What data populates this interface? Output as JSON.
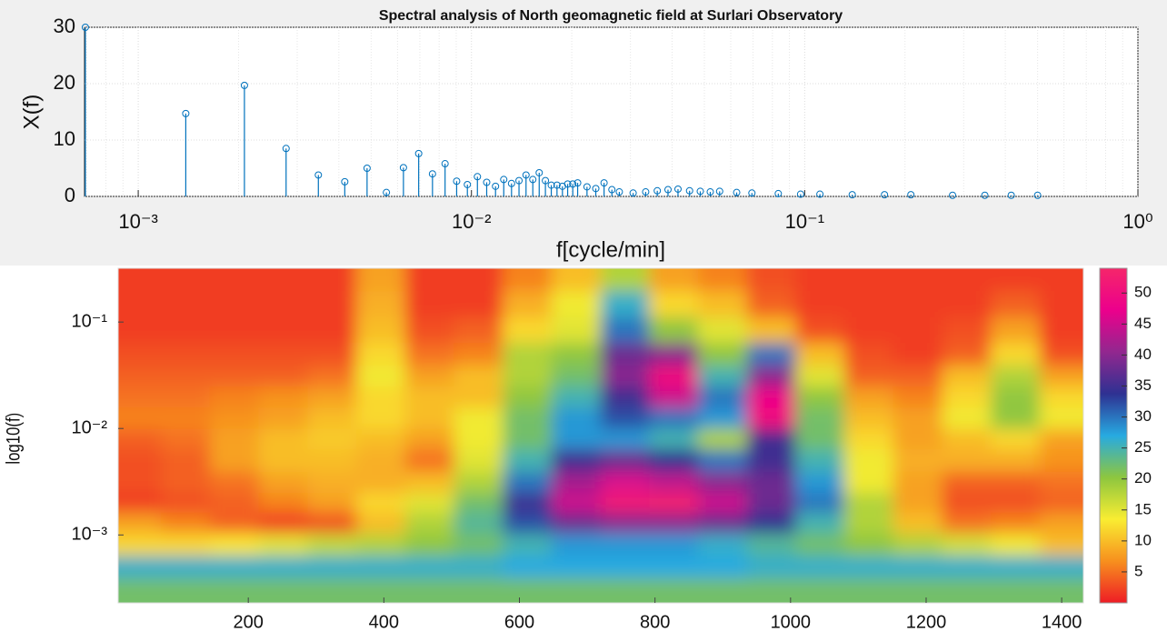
{
  "chart_data": [
    {
      "type": "stem",
      "title": "Spectral analysis of North geomagnetic field at Surlari Observatory",
      "xlabel": "f[cycle/min]",
      "ylabel": "X(f)",
      "color": "#0072bd",
      "xscale": "log",
      "grid": true,
      "xlim": [
        0.00069,
        1
      ],
      "ylim": [
        0,
        30
      ],
      "xticks": [
        {
          "value": 0.001,
          "label": "10⁻³"
        },
        {
          "value": 0.01,
          "label": "10⁻²"
        },
        {
          "value": 0.1,
          "label": "10⁻¹"
        },
        {
          "value": 1,
          "label": "10⁰"
        }
      ],
      "yticks": [
        0,
        10,
        20,
        30
      ],
      "x": [
        0.000694,
        0.001389,
        0.002083,
        0.002778,
        0.003472,
        0.004167,
        0.004861,
        0.005556,
        0.00625,
        0.006944,
        0.007639,
        0.008333,
        0.009028,
        0.009722,
        0.01042,
        0.01111,
        0.01181,
        0.0125,
        0.01319,
        0.01389,
        0.01458,
        0.01528,
        0.01597,
        0.01667,
        0.01736,
        0.01806,
        0.01875,
        0.01944,
        0.02014,
        0.02083,
        0.02222,
        0.02361,
        0.025,
        0.02639,
        0.02778,
        0.03056,
        0.03333,
        0.03611,
        0.03889,
        0.04167,
        0.04514,
        0.04861,
        0.05208,
        0.05556,
        0.0625,
        0.06944,
        0.08333,
        0.09722,
        0.1111,
        0.1389,
        0.1736,
        0.2083,
        0.2778,
        0.3472,
        0.4167,
        0.5
      ],
      "values": [
        30,
        14.7,
        19.7,
        8.5,
        3.8,
        2.6,
        5.0,
        0.7,
        5.1,
        7.6,
        4.0,
        5.8,
        2.7,
        2.1,
        3.5,
        2.5,
        1.8,
        3.0,
        2.3,
        2.8,
        3.8,
        3.0,
        4.2,
        2.8,
        2.0,
        2.0,
        1.8,
        2.2,
        2.2,
        2.4,
        1.7,
        1.4,
        2.4,
        1.2,
        0.8,
        0.6,
        0.8,
        1.0,
        1.2,
        1.3,
        1.0,
        0.9,
        0.8,
        0.9,
        0.7,
        0.6,
        0.5,
        0.4,
        0.4,
        0.3,
        0.3,
        0.3,
        0.2,
        0.2,
        0.2,
        0.2
      ]
    },
    {
      "type": "heatmap",
      "ylabel": "log10(f)",
      "yscale": "log",
      "xlim": [
        8,
        1432
      ],
      "ylim": [
        0.00023,
        0.32
      ],
      "xticks": [
        200,
        400,
        600,
        800,
        1000,
        1200,
        1400
      ],
      "yticks": [
        {
          "value": 0.001,
          "label": "10⁻³"
        },
        {
          "value": 0.01,
          "label": "10⁻²"
        },
        {
          "value": 0.1,
          "label": "10⁻¹"
        }
      ],
      "clim": [
        0,
        54
      ],
      "cticks": [
        5,
        10,
        15,
        20,
        25,
        30,
        35,
        40,
        45,
        50
      ],
      "colormap": [
        "#ee1c25",
        "#f7901e",
        "#f9ed32",
        "#8dc63f",
        "#27aae1",
        "#2e3192",
        "#92278f",
        "#ec008c",
        "#f5266a"
      ],
      "x": [
        36,
        108,
        180,
        252,
        324,
        396,
        468,
        540,
        612,
        684,
        756,
        828,
        900,
        972,
        1044,
        1116,
        1188,
        1260,
        1332,
        1404
      ],
      "y": [
        0.25,
        0.15,
        0.08,
        0.05,
        0.03,
        0.02,
        0.012,
        0.008,
        0.005,
        0.003,
        0.002,
        0.0013,
        0.0008,
        0.0005,
        0.0003
      ],
      "z": [
        [
          2,
          2,
          2,
          2,
          2,
          8,
          2,
          2,
          6,
          10,
          18,
          8,
          6,
          3,
          2,
          2,
          2,
          2,
          2,
          2
        ],
        [
          2,
          2,
          2,
          2,
          2,
          9,
          2,
          2,
          9,
          14,
          26,
          12,
          10,
          4,
          2,
          2,
          2,
          2,
          4,
          2
        ],
        [
          2,
          2,
          2,
          2,
          2,
          10,
          3,
          4,
          12,
          15,
          30,
          20,
          15,
          10,
          3,
          2,
          2,
          3,
          8,
          2
        ],
        [
          3,
          3,
          3,
          3,
          3,
          12,
          5,
          6,
          18,
          20,
          38,
          40,
          20,
          30,
          10,
          3,
          2,
          4,
          12,
          3
        ],
        [
          4,
          4,
          4,
          4,
          5,
          14,
          8,
          10,
          18,
          22,
          40,
          50,
          25,
          40,
          15,
          4,
          4,
          10,
          18,
          8
        ],
        [
          5,
          5,
          6,
          7,
          8,
          12,
          10,
          10,
          20,
          25,
          35,
          45,
          30,
          48,
          20,
          8,
          6,
          12,
          20,
          12
        ],
        [
          6,
          6,
          7,
          8,
          10,
          12,
          10,
          14,
          22,
          28,
          32,
          30,
          28,
          50,
          22,
          10,
          8,
          14,
          20,
          14
        ],
        [
          4,
          5,
          8,
          10,
          11,
          10,
          8,
          14,
          22,
          28,
          28,
          25,
          18,
          35,
          22,
          12,
          8,
          10,
          12,
          8
        ],
        [
          3,
          4,
          8,
          10,
          10,
          9,
          5,
          15,
          25,
          35,
          38,
          34,
          30,
          35,
          25,
          14,
          9,
          9,
          9,
          7
        ],
        [
          3,
          4,
          5,
          8,
          9,
          9,
          10,
          18,
          30,
          42,
          46,
          44,
          40,
          38,
          28,
          14,
          8,
          4,
          4,
          5
        ],
        [
          2,
          3,
          4,
          6,
          8,
          12,
          15,
          22,
          35,
          45,
          52,
          53,
          45,
          38,
          30,
          18,
          8,
          3,
          3,
          4
        ],
        [
          8,
          6,
          4,
          2,
          3,
          10,
          18,
          24,
          32,
          38,
          40,
          40,
          38,
          34,
          25,
          18,
          10,
          5,
          6,
          8
        ],
        [
          12,
          12,
          13,
          15,
          17,
          18,
          20,
          22,
          25,
          28,
          28,
          28,
          26,
          24,
          22,
          20,
          18,
          16,
          14,
          10
        ],
        [
          26,
          26,
          26,
          26,
          26,
          26,
          26,
          26,
          27,
          27,
          27,
          27,
          27,
          26,
          26,
          26,
          26,
          26,
          26,
          26
        ],
        [
          22,
          22,
          22,
          22,
          22,
          22,
          22,
          22,
          22,
          22,
          22,
          22,
          22,
          22,
          22,
          22,
          22,
          22,
          22,
          22
        ]
      ]
    }
  ]
}
